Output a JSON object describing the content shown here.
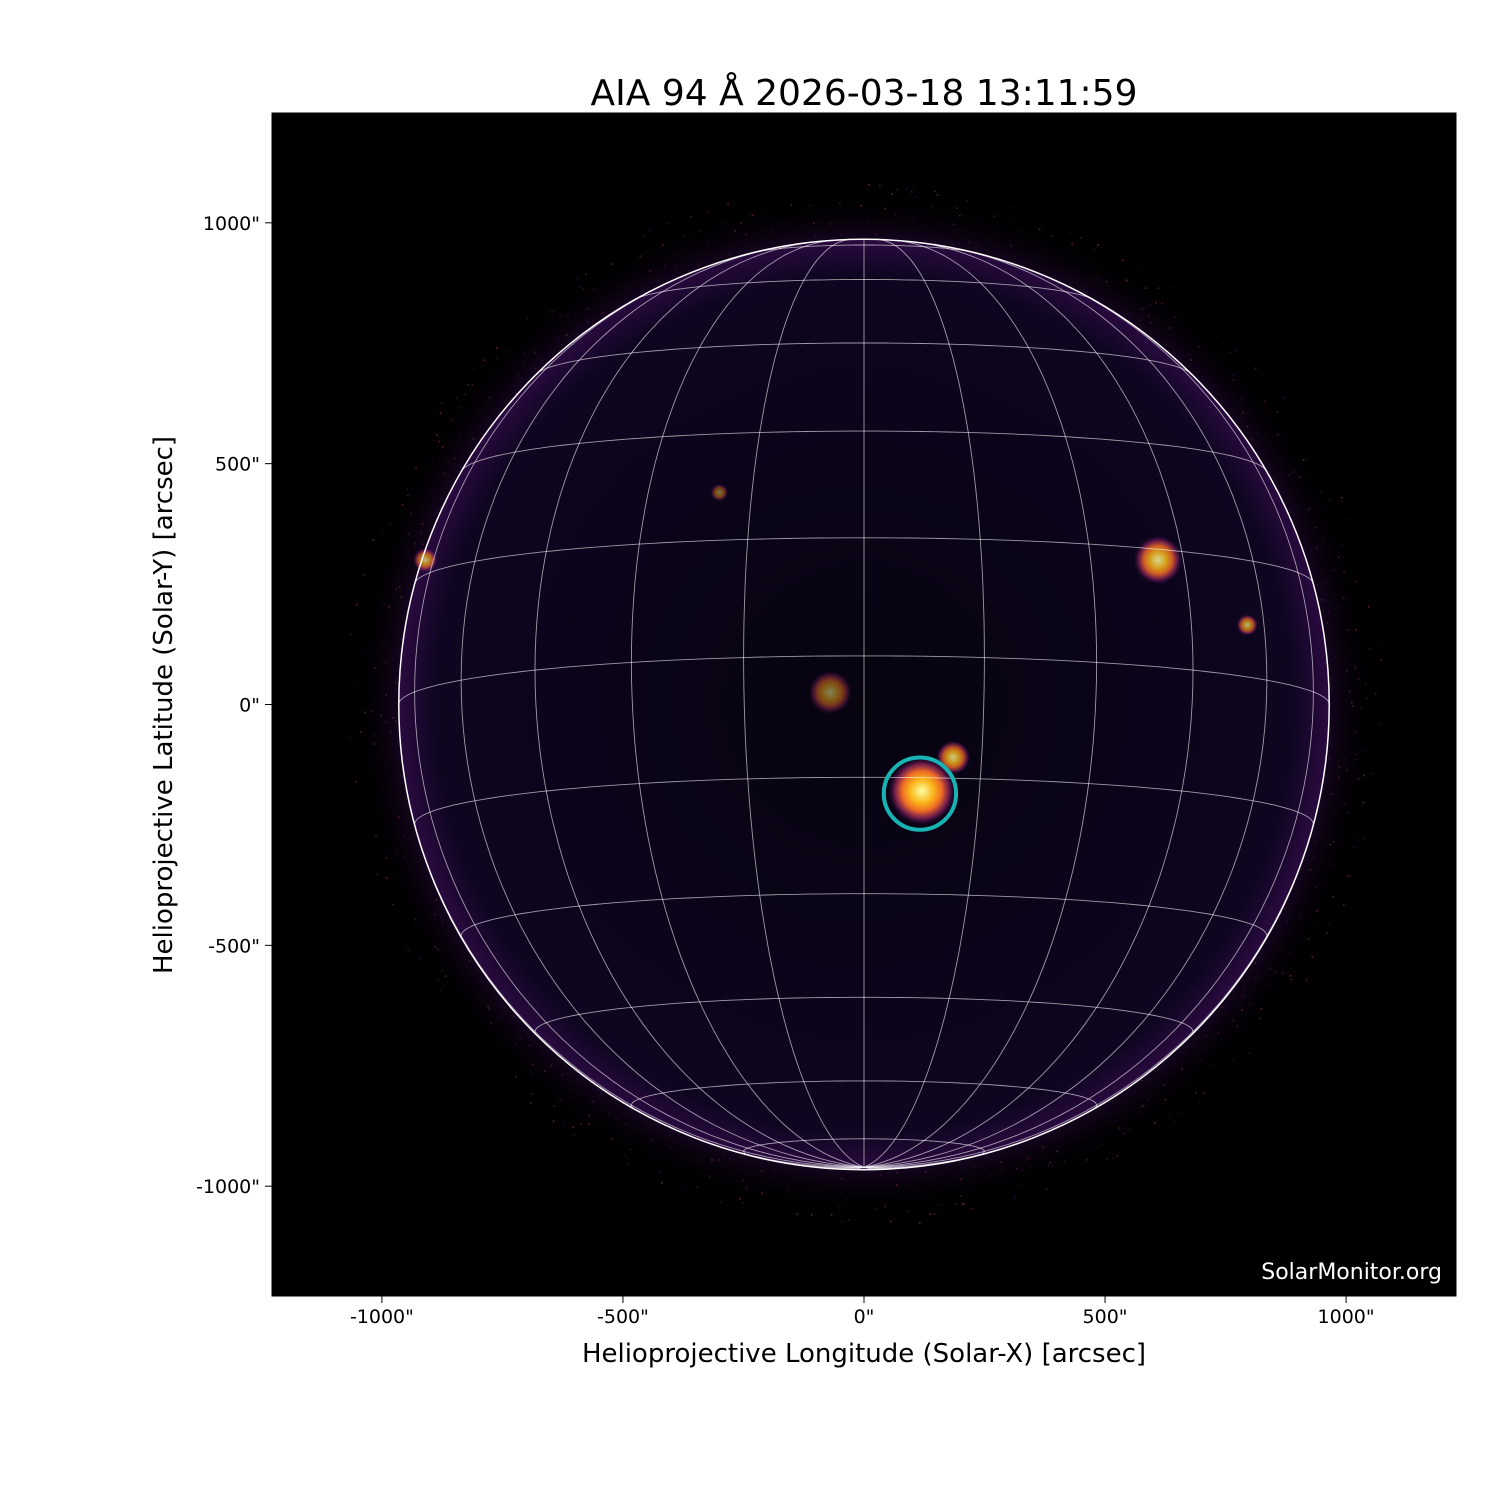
{
  "chart_data": {
    "type": "image",
    "title": "AIA 94 Å 2026-03-18 13:11:59",
    "xlabel": "Helioprojective Longitude (Solar-X) [arcsec]",
    "ylabel": "Helioprojective Latitude (Solar-Y) [arcsec]",
    "xlim": [
      -1228,
      1228
    ],
    "ylim": [
      -1228,
      1228
    ],
    "xticks": [
      -1000,
      -500,
      0,
      500,
      1000
    ],
    "xtick_labels": [
      "-1000\"",
      "-500\"",
      "0\"",
      "500\"",
      "1000\""
    ],
    "yticks": [
      1000,
      500,
      0,
      -500,
      -1000
    ],
    "ytick_labels": [
      "1000\"",
      "500\"",
      "0\"",
      "-500\"",
      "-1000\""
    ],
    "colormap": "inferno",
    "solar_radius_arcsec": 965,
    "grid": {
      "lat_lon_spacing_deg": 15,
      "color": "#ffffff"
    },
    "annotation_circle": {
      "x": 116,
      "y": -185,
      "r": 75,
      "color": "#18b4b4"
    },
    "bright_regions": [
      {
        "x": 120,
        "y": -180,
        "r": 70,
        "intensity": 1.0
      },
      {
        "x": 185,
        "y": -110,
        "r": 35,
        "intensity": 0.8
      },
      {
        "x": 610,
        "y": 300,
        "r": 50,
        "intensity": 0.85
      },
      {
        "x": 795,
        "y": 165,
        "r": 22,
        "intensity": 0.7
      },
      {
        "x": -910,
        "y": 300,
        "r": 25,
        "intensity": 0.7
      },
      {
        "x": -70,
        "y": 25,
        "r": 45,
        "intensity": 0.5
      },
      {
        "x": -300,
        "y": 440,
        "r": 18,
        "intensity": 0.45
      }
    ],
    "watermark": "SolarMonitor.org"
  }
}
